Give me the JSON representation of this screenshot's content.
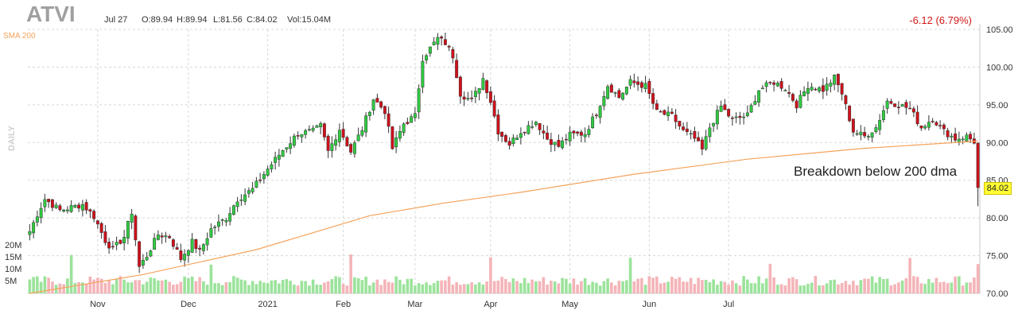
{
  "header": {
    "ticker": "ATVI",
    "date": "Jul 27",
    "open": "O:89.94",
    "high": "H:89.94",
    "low": "L:81.56",
    "close": "C:84.02",
    "volume": "Vol:15.04M",
    "change": "-6.12 (6.79%)",
    "sma_label": "SMA 200",
    "period_label": "DAILY",
    "annotation": "Breakdown below 200 dma",
    "last_price_label": "84.02"
  },
  "colors": {
    "up": "#2ecc40",
    "down": "#d0101a",
    "sma": "#f5a35b",
    "grid": "#d8d8d8",
    "volume_up": "#9be39b",
    "volume_down": "#f4b4b8"
  },
  "chart_data": {
    "type": "candlestick",
    "title": "ATVI",
    "ylim": [
      70,
      105
    ],
    "y_ticks": [
      "70.00",
      "75.00",
      "80.00",
      "85.00",
      "90.00",
      "95.00",
      "100.00",
      "105.00"
    ],
    "x_ticks": [
      "Nov",
      "Dec",
      "2021",
      "Feb",
      "Mar",
      "Apr",
      "May",
      "Jun",
      "Jul"
    ],
    "volume_ticks": [
      "5M",
      "10M",
      "15M",
      "20M"
    ],
    "grid": true,
    "anchors": [
      {
        "i": 0,
        "price": 78.2
      },
      {
        "i": 2,
        "price": 80.5
      },
      {
        "i": 4,
        "price": 82.5
      },
      {
        "i": 8,
        "price": 81.0
      },
      {
        "i": 14,
        "price": 81.8
      },
      {
        "i": 17,
        "price": 80.2
      },
      {
        "i": 20,
        "price": 77.0
      },
      {
        "i": 22,
        "price": 75.8
      },
      {
        "i": 25,
        "price": 77.5
      },
      {
        "i": 27,
        "price": 80.8
      },
      {
        "i": 29,
        "price": 73.5
      },
      {
        "i": 31,
        "price": 75.0
      },
      {
        "i": 34,
        "price": 77.8
      },
      {
        "i": 37,
        "price": 77.5
      },
      {
        "i": 40,
        "price": 74.6
      },
      {
        "i": 43,
        "price": 76.8
      },
      {
        "i": 45,
        "price": 75.5
      },
      {
        "i": 48,
        "price": 78.5
      },
      {
        "i": 52,
        "price": 80.0
      },
      {
        "i": 55,
        "price": 82.5
      },
      {
        "i": 59,
        "price": 83.8
      },
      {
        "i": 63,
        "price": 86.5
      },
      {
        "i": 67,
        "price": 89.0
      },
      {
        "i": 71,
        "price": 91.2
      },
      {
        "i": 75,
        "price": 91.5
      },
      {
        "i": 77,
        "price": 92.2
      },
      {
        "i": 79,
        "price": 88.8
      },
      {
        "i": 82,
        "price": 91.8
      },
      {
        "i": 85,
        "price": 88.8
      },
      {
        "i": 88,
        "price": 91.8
      },
      {
        "i": 91,
        "price": 95.8
      },
      {
        "i": 94,
        "price": 94.2
      },
      {
        "i": 96,
        "price": 89.2
      },
      {
        "i": 99,
        "price": 92.5
      },
      {
        "i": 102,
        "price": 93.5
      },
      {
        "i": 104,
        "price": 101.2
      },
      {
        "i": 108,
        "price": 103.8
      },
      {
        "i": 110,
        "price": 103.2
      },
      {
        "i": 112,
        "price": 101.5
      },
      {
        "i": 114,
        "price": 96.5
      },
      {
        "i": 117,
        "price": 95.5
      },
      {
        "i": 120,
        "price": 98.5
      },
      {
        "i": 122,
        "price": 95.5
      },
      {
        "i": 124,
        "price": 91.5
      },
      {
        "i": 127,
        "price": 89.8
      },
      {
        "i": 130,
        "price": 91.5
      },
      {
        "i": 134,
        "price": 92.8
      },
      {
        "i": 137,
        "price": 90.5
      },
      {
        "i": 140,
        "price": 89.5
      },
      {
        "i": 143,
        "price": 91.0
      },
      {
        "i": 147,
        "price": 91.2
      },
      {
        "i": 150,
        "price": 94.0
      },
      {
        "i": 153,
        "price": 97.6
      },
      {
        "i": 156,
        "price": 96.0
      },
      {
        "i": 159,
        "price": 98.0
      },
      {
        "i": 163,
        "price": 97.5
      },
      {
        "i": 166,
        "price": 94.0
      },
      {
        "i": 170,
        "price": 93.5
      },
      {
        "i": 173,
        "price": 91.5
      },
      {
        "i": 176,
        "price": 90.5
      },
      {
        "i": 178,
        "price": 89.0
      },
      {
        "i": 180,
        "price": 92.0
      },
      {
        "i": 183,
        "price": 94.8
      },
      {
        "i": 186,
        "price": 93.0
      },
      {
        "i": 190,
        "price": 93.6
      },
      {
        "i": 193,
        "price": 97.0
      },
      {
        "i": 197,
        "price": 98.0
      },
      {
        "i": 200,
        "price": 97.2
      },
      {
        "i": 203,
        "price": 95.0
      },
      {
        "i": 206,
        "price": 97.6
      },
      {
        "i": 210,
        "price": 97.0
      },
      {
        "i": 213,
        "price": 98.6
      },
      {
        "i": 215,
        "price": 96.5
      },
      {
        "i": 218,
        "price": 91.5
      },
      {
        "i": 221,
        "price": 90.8
      },
      {
        "i": 224,
        "price": 92.0
      },
      {
        "i": 227,
        "price": 95.5
      },
      {
        "i": 230,
        "price": 95.0
      },
      {
        "i": 233,
        "price": 94.5
      },
      {
        "i": 236,
        "price": 92.0
      },
      {
        "i": 239,
        "price": 93.2
      },
      {
        "i": 242,
        "price": 91.5
      },
      {
        "i": 245,
        "price": 90.5
      },
      {
        "i": 248,
        "price": 90.8
      },
      {
        "i": 250,
        "price": 90.14
      }
    ],
    "last_candle": {
      "date": "Jul 27",
      "open": 89.94,
      "high": 89.94,
      "low": 81.56,
      "close": 84.02,
      "volume": 15.04
    },
    "sma200": [
      {
        "i": 0,
        "v": 70.0
      },
      {
        "i": 30,
        "v": 72.5
      },
      {
        "i": 60,
        "v": 75.8
      },
      {
        "i": 90,
        "v": 80.3
      },
      {
        "i": 110,
        "v": 82.0
      },
      {
        "i": 130,
        "v": 83.4
      },
      {
        "i": 160,
        "v": 85.8
      },
      {
        "i": 190,
        "v": 87.8
      },
      {
        "i": 220,
        "v": 89.2
      },
      {
        "i": 251,
        "v": 90.2
      }
    ]
  }
}
